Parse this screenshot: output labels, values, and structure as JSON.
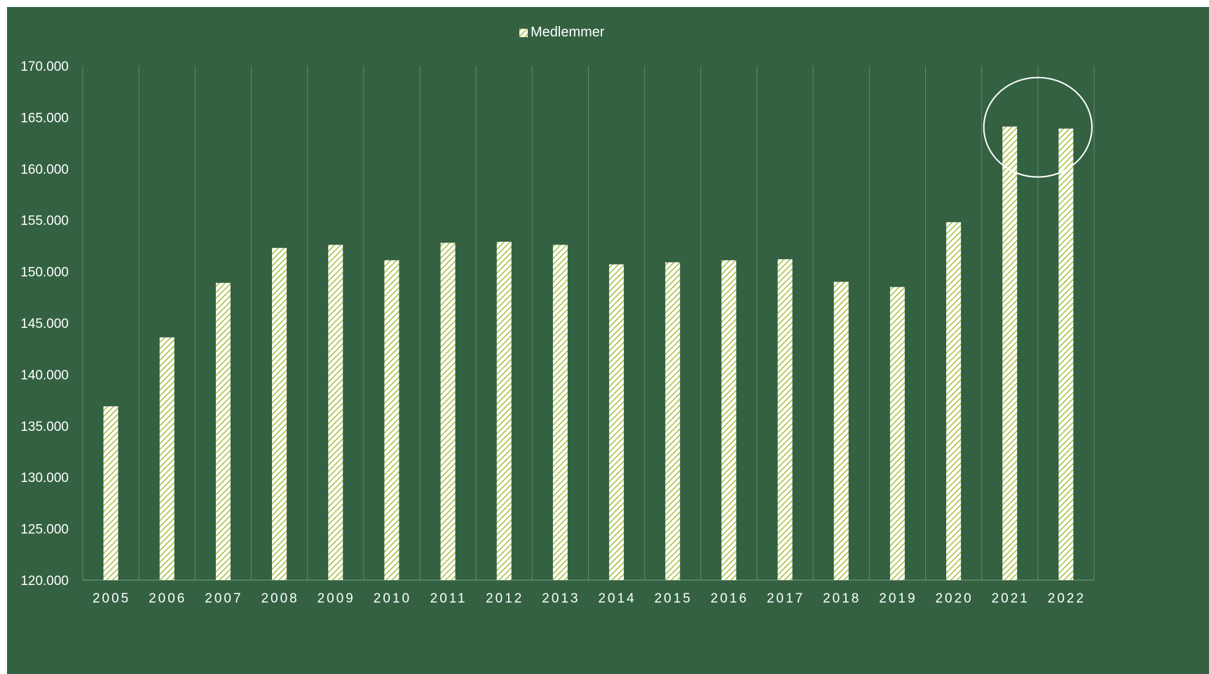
{
  "chart_data": {
    "type": "bar",
    "legend": {
      "label": "Medlemmer",
      "position": "top"
    },
    "categories": [
      "2005",
      "2006",
      "2007",
      "2008",
      "2009",
      "2010",
      "2011",
      "2012",
      "2013",
      "2014",
      "2015",
      "2016",
      "2017",
      "2018",
      "2019",
      "2020",
      "2021",
      "2022"
    ],
    "series": [
      {
        "name": "Medlemmer",
        "values": [
          136900,
          143600,
          148900,
          152300,
          152600,
          151100,
          152800,
          152900,
          152600,
          150700,
          150900,
          151100,
          151200,
          149000,
          148500,
          154800,
          164100,
          163900
        ]
      }
    ],
    "yticks": [
      "120.000",
      "125.000",
      "130.000",
      "135.000",
      "140.000",
      "145.000",
      "150.000",
      "155.000",
      "160.000",
      "165.000",
      "170.000"
    ],
    "ylim": [
      120000,
      170000
    ],
    "grid": "vertical",
    "highlight_categories": [
      "2021",
      "2022"
    ],
    "colors": {
      "background": "#336142",
      "bar_fill": "#ffffff",
      "bar_hatch": "#a6bd3b",
      "text": "#ffffff",
      "grid": "#5d8a6a"
    }
  }
}
